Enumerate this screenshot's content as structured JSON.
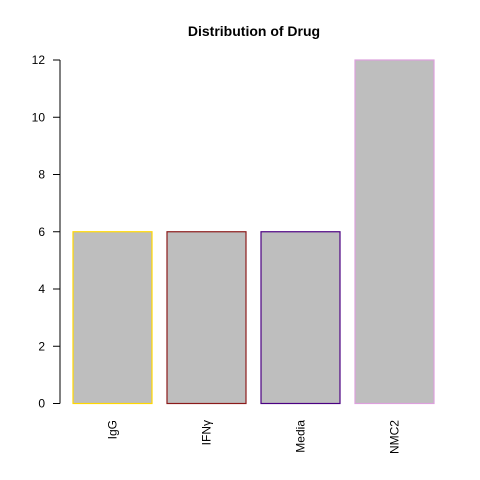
{
  "chart_data": {
    "type": "bar",
    "title": "Distribution of Drug",
    "xlabel": "",
    "ylabel": "",
    "categories": [
      "IgG",
      "IFNγ",
      "Media",
      "NMC2"
    ],
    "values": [
      6,
      6,
      6,
      12
    ],
    "ylim": [
      0,
      12
    ],
    "yticks": [
      0,
      2,
      4,
      6,
      8,
      10,
      12
    ],
    "grid": false,
    "bar_fill": "#bebebe",
    "bar_borders": [
      "#ffd700",
      "#8b1a1a",
      "#4b0082",
      "#dda0dd"
    ]
  }
}
